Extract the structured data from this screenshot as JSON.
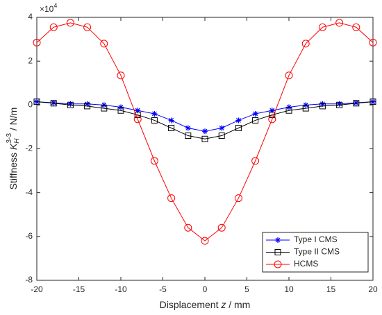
{
  "chart_data": {
    "type": "line",
    "xlabel": {
      "text": "Displacement ",
      "var": "z",
      "unit": " / mm"
    },
    "ylabel": {
      "text": "Stiffness ",
      "var": "K",
      "sub": "H",
      "sup": "3-3",
      "unit": " / N/m"
    },
    "y_multiplier": {
      "base": "×10",
      "exponent": "4"
    },
    "x": [
      -20,
      -18,
      -16,
      -14,
      -12,
      -10,
      -8,
      -6,
      -4,
      -2,
      0,
      2,
      4,
      6,
      8,
      10,
      12,
      14,
      16,
      18,
      20
    ],
    "series": [
      {
        "name": "Type I CMS",
        "color": "#0000ff",
        "marker": "asterisk",
        "values": [
          0.15,
          0.1,
          0.05,
          0.05,
          0.0,
          -0.1,
          -0.25,
          -0.4,
          -0.7,
          -1.05,
          -1.2,
          -1.05,
          -0.7,
          -0.4,
          -0.25,
          -0.1,
          0.0,
          0.05,
          0.05,
          0.1,
          0.15
        ]
      },
      {
        "name": "Type II CMS",
        "color": "#000000",
        "marker": "square",
        "values": [
          0.15,
          0.08,
          0.0,
          -0.05,
          -0.15,
          -0.25,
          -0.45,
          -0.7,
          -1.05,
          -1.4,
          -1.55,
          -1.4,
          -1.05,
          -0.7,
          -0.45,
          -0.25,
          -0.15,
          -0.05,
          0.0,
          0.08,
          0.15
        ]
      },
      {
        "name": "HCMS",
        "color": "#ff0000",
        "marker": "circle",
        "values": [
          2.85,
          3.55,
          3.75,
          3.55,
          2.8,
          1.35,
          -0.65,
          -2.55,
          -4.25,
          -5.6,
          -6.2,
          -5.6,
          -4.25,
          -2.55,
          -0.65,
          1.35,
          2.8,
          3.55,
          3.75,
          3.55,
          2.85
        ]
      }
    ],
    "xlim": [
      -20,
      20
    ],
    "xticks": [
      -20,
      -15,
      -10,
      -5,
      0,
      5,
      10,
      15,
      20
    ],
    "ylim": [
      -8,
      4
    ],
    "yticks": [
      -8,
      -6,
      -4,
      -2,
      0,
      2,
      4
    ],
    "grid": false,
    "legend": "southeast"
  }
}
